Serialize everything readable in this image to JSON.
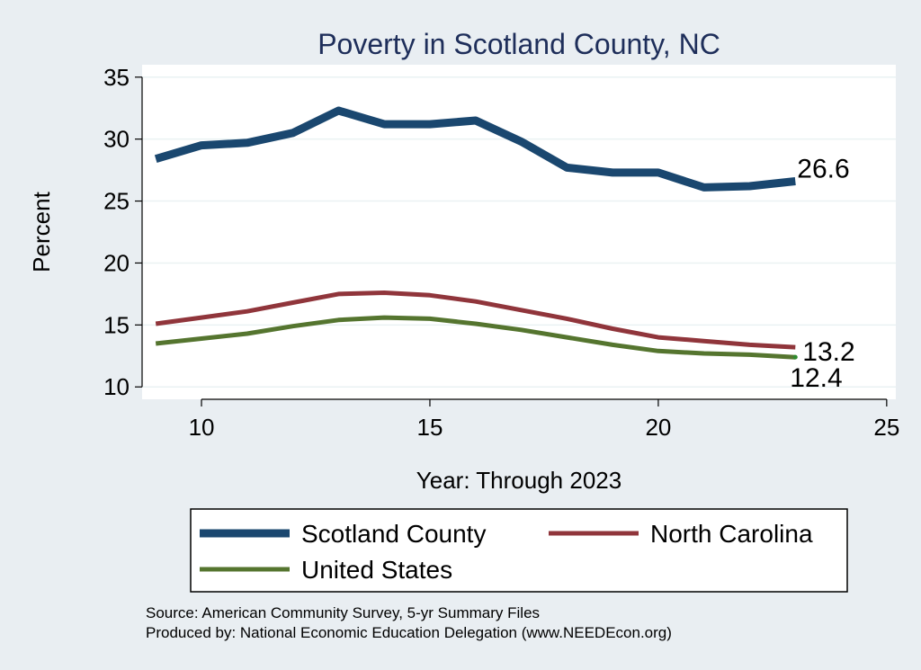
{
  "chart_data": {
    "type": "line",
    "title": "Poverty in Scotland County, NC",
    "xlabel": "Year: Through 2023",
    "ylabel": "Percent",
    "xlim": [
      8.7,
      25.2
    ],
    "ylim": [
      9.0,
      36.0
    ],
    "xticks": [
      10,
      15,
      20,
      25
    ],
    "yticks": [
      10,
      15,
      20,
      25,
      30,
      35
    ],
    "grid": true,
    "legend_position": "bottom",
    "x": [
      9,
      10,
      11,
      12,
      13,
      14,
      15,
      16,
      17,
      18,
      19,
      20,
      21,
      22,
      23
    ],
    "series": [
      {
        "name": "Scotland County",
        "color": "#1a476f",
        "values": [
          28.4,
          29.5,
          29.7,
          30.5,
          32.3,
          31.2,
          31.2,
          31.5,
          29.8,
          27.7,
          27.3,
          27.3,
          26.1,
          26.2,
          26.6
        ],
        "end_label": "26.6"
      },
      {
        "name": "North Carolina",
        "color": "#90353b",
        "values": [
          15.1,
          15.6,
          16.1,
          16.8,
          17.5,
          17.6,
          17.4,
          16.9,
          16.2,
          15.5,
          14.7,
          14.0,
          13.7,
          13.4,
          13.2
        ],
        "end_label": "13.2"
      },
      {
        "name": "United States",
        "color": "#55752f",
        "values": [
          13.5,
          13.9,
          14.3,
          14.9,
          15.4,
          15.6,
          15.5,
          15.1,
          14.6,
          14.0,
          13.4,
          12.9,
          12.7,
          12.6,
          12.4
        ],
        "end_label": "12.4"
      }
    ],
    "notes": [
      "Source: American Community Survey, 5-yr Summary Files",
      "Produced by: National Economic Education Delegation (www.NEEDEcon.org)"
    ]
  }
}
